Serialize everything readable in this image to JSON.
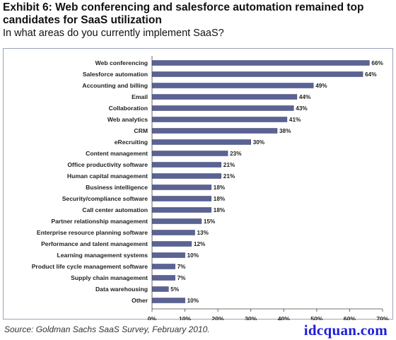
{
  "header": {
    "title_line1": "Exhibit 6:  Web conferencing and salesforce automation remained top",
    "title_line2": "candidates for SaaS utilization",
    "subtitle": "In what areas do you currently implement SaaS?"
  },
  "footer": {
    "source": "Source: Goldman Sachs SaaS Survey, February 2010.",
    "watermark": "idcquan.com"
  },
  "colors": {
    "bar": "#5a6394",
    "bar_edge": "#3e4670",
    "frame": "#9aa3b8",
    "axis": "#444444"
  },
  "chart_data": {
    "type": "bar",
    "orientation": "horizontal",
    "categories": [
      "Web conferencing",
      "Salesforce automation",
      "Accounting and billing",
      "Email",
      "Collaboration",
      "Web analytics",
      "CRM",
      "eRecruiting",
      "Content management",
      "Office productivity software",
      "Human capital management",
      "Business intelligence",
      "Security/compliance software",
      "Call center automation",
      "Partner relationship management",
      "Enterprise resource planning software",
      "Performance and talent management",
      "Learning management systems",
      "Product life cycle management software",
      "Supply chain management",
      "Data warehousing",
      "Other"
    ],
    "values": [
      66,
      64,
      49,
      44,
      43,
      41,
      38,
      30,
      23,
      21,
      21,
      18,
      18,
      18,
      15,
      13,
      12,
      10,
      7,
      7,
      5,
      10
    ],
    "value_labels": [
      "66%",
      "64%",
      "49%",
      "44%",
      "43%",
      "41%",
      "38%",
      "30%",
      "23%",
      "21%",
      "21%",
      "18%",
      "18%",
      "18%",
      "15%",
      "13%",
      "12%",
      "10%",
      "7%",
      "7%",
      "5%",
      "10%"
    ],
    "xlim": [
      0,
      70
    ],
    "xticks": [
      0,
      10,
      20,
      30,
      40,
      50,
      60,
      70
    ],
    "xtick_labels": [
      "0%",
      "10%",
      "20%",
      "30%",
      "40%",
      "50%",
      "60%",
      "70%"
    ],
    "grid": false,
    "legend": "none"
  }
}
